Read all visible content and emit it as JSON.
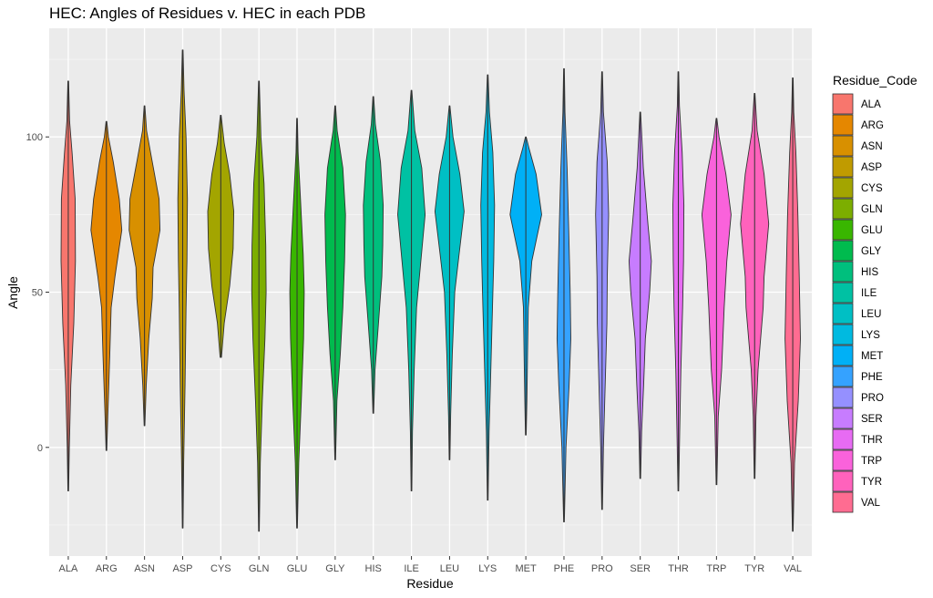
{
  "chart_data": {
    "type": "violin",
    "title": "HEC: Angles of Residues v. HEC in each PDB",
    "xlabel": "Residue",
    "ylabel": "Angle",
    "ylim": [
      -35,
      135
    ],
    "yticks": [
      0,
      50,
      100
    ],
    "grid": true,
    "legend": {
      "title": "Residue_Code",
      "position": "right"
    },
    "categories": [
      "ALA",
      "ARG",
      "ASN",
      "ASP",
      "CYS",
      "GLN",
      "GLU",
      "GLY",
      "HIS",
      "ILE",
      "LEU",
      "LYS",
      "MET",
      "PHE",
      "PRO",
      "SER",
      "THR",
      "TRP",
      "TYR",
      "VAL"
    ],
    "colors": [
      "#F8766D",
      "#E58700",
      "#D89000",
      "#C09B00",
      "#A3A500",
      "#7CAE00",
      "#39B600",
      "#00BB4E",
      "#00BF7D",
      "#00C1A3",
      "#00BFC4",
      "#00BAE0",
      "#00B0F6",
      "#35A2FF",
      "#9590FF",
      "#C77CFF",
      "#E76BF3",
      "#FA62DB",
      "#FF62BC",
      "#FF6C91"
    ],
    "series": [
      {
        "name": "ALA",
        "min": -14,
        "max": 118,
        "profile": [
          [
            -14,
            0.02
          ],
          [
            0,
            0.06
          ],
          [
            20,
            0.15
          ],
          [
            40,
            0.32
          ],
          [
            60,
            0.42
          ],
          [
            80,
            0.4
          ],
          [
            95,
            0.22
          ],
          [
            105,
            0.08
          ],
          [
            118,
            0.02
          ]
        ]
      },
      {
        "name": "ARG",
        "min": -1,
        "max": 105,
        "profile": [
          [
            -1,
            0.02
          ],
          [
            10,
            0.08
          ],
          [
            30,
            0.2
          ],
          [
            45,
            0.28
          ],
          [
            55,
            0.5
          ],
          [
            70,
            0.9
          ],
          [
            80,
            0.75
          ],
          [
            92,
            0.4
          ],
          [
            100,
            0.12
          ],
          [
            105,
            0.02
          ]
        ]
      },
      {
        "name": "ASN",
        "min": 7,
        "max": 110,
        "profile": [
          [
            7,
            0.02
          ],
          [
            20,
            0.1
          ],
          [
            35,
            0.25
          ],
          [
            48,
            0.45
          ],
          [
            58,
            0.5
          ],
          [
            70,
            0.9
          ],
          [
            80,
            0.85
          ],
          [
            92,
            0.45
          ],
          [
            102,
            0.12
          ],
          [
            110,
            0.02
          ]
        ]
      },
      {
        "name": "ASP",
        "min": -26,
        "max": 128,
        "profile": [
          [
            -26,
            0.02
          ],
          [
            -5,
            0.06
          ],
          [
            20,
            0.14
          ],
          [
            45,
            0.2
          ],
          [
            60,
            0.25
          ],
          [
            80,
            0.28
          ],
          [
            100,
            0.2
          ],
          [
            115,
            0.08
          ],
          [
            128,
            0.02
          ]
        ]
      },
      {
        "name": "CYS",
        "min": 29,
        "max": 107,
        "profile": [
          [
            29,
            0.04
          ],
          [
            40,
            0.2
          ],
          [
            52,
            0.52
          ],
          [
            64,
            0.72
          ],
          [
            76,
            0.76
          ],
          [
            88,
            0.52
          ],
          [
            98,
            0.2
          ],
          [
            107,
            0.02
          ]
        ]
      },
      {
        "name": "GLN",
        "min": -27,
        "max": 118,
        "profile": [
          [
            -27,
            0.02
          ],
          [
            -5,
            0.08
          ],
          [
            15,
            0.2
          ],
          [
            35,
            0.35
          ],
          [
            50,
            0.42
          ],
          [
            65,
            0.4
          ],
          [
            85,
            0.3
          ],
          [
            100,
            0.12
          ],
          [
            118,
            0.02
          ]
        ]
      },
      {
        "name": "GLU",
        "min": -26,
        "max": 106,
        "profile": [
          [
            -26,
            0.02
          ],
          [
            -5,
            0.1
          ],
          [
            15,
            0.25
          ],
          [
            35,
            0.38
          ],
          [
            50,
            0.42
          ],
          [
            62,
            0.36
          ],
          [
            80,
            0.2
          ],
          [
            95,
            0.06
          ],
          [
            106,
            0.02
          ]
        ]
      },
      {
        "name": "GLY",
        "min": -4,
        "max": 110,
        "profile": [
          [
            -4,
            0.02
          ],
          [
            15,
            0.1
          ],
          [
            30,
            0.3
          ],
          [
            45,
            0.45
          ],
          [
            60,
            0.55
          ],
          [
            75,
            0.6
          ],
          [
            90,
            0.45
          ],
          [
            102,
            0.12
          ],
          [
            110,
            0.02
          ]
        ]
      },
      {
        "name": "HIS",
        "min": 11,
        "max": 113,
        "profile": [
          [
            11,
            0.02
          ],
          [
            25,
            0.1
          ],
          [
            40,
            0.3
          ],
          [
            55,
            0.5
          ],
          [
            65,
            0.55
          ],
          [
            78,
            0.58
          ],
          [
            92,
            0.42
          ],
          [
            104,
            0.12
          ],
          [
            113,
            0.02
          ]
        ]
      },
      {
        "name": "ILE",
        "min": -14,
        "max": 115,
        "profile": [
          [
            -14,
            0.02
          ],
          [
            5,
            0.06
          ],
          [
            25,
            0.16
          ],
          [
            45,
            0.3
          ],
          [
            60,
            0.55
          ],
          [
            75,
            0.8
          ],
          [
            90,
            0.6
          ],
          [
            102,
            0.2
          ],
          [
            115,
            0.02
          ]
        ]
      },
      {
        "name": "LEU",
        "min": -4,
        "max": 110,
        "profile": [
          [
            -4,
            0.02
          ],
          [
            10,
            0.06
          ],
          [
            30,
            0.16
          ],
          [
            50,
            0.3
          ],
          [
            62,
            0.55
          ],
          [
            76,
            0.85
          ],
          [
            88,
            0.6
          ],
          [
            100,
            0.2
          ],
          [
            110,
            0.02
          ]
        ]
      },
      {
        "name": "LYS",
        "min": -17,
        "max": 120,
        "profile": [
          [
            -17,
            0.02
          ],
          [
            5,
            0.08
          ],
          [
            25,
            0.18
          ],
          [
            45,
            0.28
          ],
          [
            60,
            0.35
          ],
          [
            78,
            0.4
          ],
          [
            95,
            0.3
          ],
          [
            108,
            0.1
          ],
          [
            120,
            0.02
          ]
        ]
      },
      {
        "name": "MET",
        "min": 4,
        "max": 100,
        "profile": [
          [
            4,
            0.02
          ],
          [
            15,
            0.06
          ],
          [
            30,
            0.1
          ],
          [
            45,
            0.14
          ],
          [
            60,
            0.35
          ],
          [
            75,
            0.92
          ],
          [
            88,
            0.6
          ],
          [
            96,
            0.2
          ],
          [
            100,
            0.02
          ]
        ]
      },
      {
        "name": "PHE",
        "min": -24,
        "max": 122,
        "profile": [
          [
            -24,
            0.02
          ],
          [
            0,
            0.12
          ],
          [
            20,
            0.3
          ],
          [
            35,
            0.4
          ],
          [
            50,
            0.36
          ],
          [
            70,
            0.28
          ],
          [
            90,
            0.18
          ],
          [
            108,
            0.06
          ],
          [
            122,
            0.02
          ]
        ]
      },
      {
        "name": "PRO",
        "min": -20,
        "max": 121,
        "profile": [
          [
            -20,
            0.02
          ],
          [
            0,
            0.08
          ],
          [
            20,
            0.18
          ],
          [
            40,
            0.28
          ],
          [
            55,
            0.3
          ],
          [
            75,
            0.38
          ],
          [
            92,
            0.3
          ],
          [
            108,
            0.08
          ],
          [
            121,
            0.02
          ]
        ]
      },
      {
        "name": "SER",
        "min": -10,
        "max": 108,
        "profile": [
          [
            -10,
            0.02
          ],
          [
            5,
            0.08
          ],
          [
            20,
            0.2
          ],
          [
            35,
            0.3
          ],
          [
            50,
            0.55
          ],
          [
            60,
            0.65
          ],
          [
            72,
            0.45
          ],
          [
            90,
            0.18
          ],
          [
            108,
            0.02
          ]
        ]
      },
      {
        "name": "THR",
        "min": -14,
        "max": 121,
        "profile": [
          [
            -14,
            0.02
          ],
          [
            5,
            0.08
          ],
          [
            25,
            0.15
          ],
          [
            45,
            0.25
          ],
          [
            60,
            0.3
          ],
          [
            78,
            0.32
          ],
          [
            95,
            0.22
          ],
          [
            110,
            0.06
          ],
          [
            121,
            0.02
          ]
        ]
      },
      {
        "name": "TRP",
        "min": -12,
        "max": 106,
        "profile": [
          [
            -12,
            0.02
          ],
          [
            10,
            0.1
          ],
          [
            25,
            0.3
          ],
          [
            45,
            0.45
          ],
          [
            60,
            0.6
          ],
          [
            75,
            0.85
          ],
          [
            88,
            0.55
          ],
          [
            100,
            0.15
          ],
          [
            106,
            0.02
          ]
        ]
      },
      {
        "name": "TYR",
        "min": -10,
        "max": 114,
        "profile": [
          [
            -10,
            0.02
          ],
          [
            10,
            0.08
          ],
          [
            25,
            0.2
          ],
          [
            45,
            0.5
          ],
          [
            55,
            0.55
          ],
          [
            72,
            0.82
          ],
          [
            88,
            0.55
          ],
          [
            102,
            0.15
          ],
          [
            114,
            0.02
          ]
        ]
      },
      {
        "name": "VAL",
        "min": -27,
        "max": 119,
        "profile": [
          [
            -27,
            0.02
          ],
          [
            -5,
            0.1
          ],
          [
            15,
            0.32
          ],
          [
            35,
            0.45
          ],
          [
            55,
            0.38
          ],
          [
            75,
            0.3
          ],
          [
            95,
            0.18
          ],
          [
            108,
            0.06
          ],
          [
            119,
            0.02
          ]
        ]
      }
    ]
  }
}
